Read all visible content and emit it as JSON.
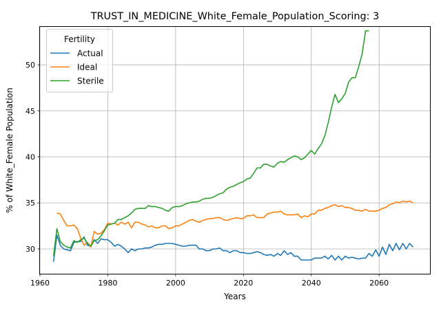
{
  "chart_data": {
    "type": "line",
    "title": "TRUST_IN_MEDICINE_White_Female_Population_Scoring: 3",
    "xlabel": "Years",
    "ylabel": "% of White_Female Population",
    "xlim": [
      1960,
      2075
    ],
    "ylim": [
      27.3,
      54.2
    ],
    "x_ticks": [
      1960,
      1980,
      2000,
      2020,
      2040,
      2060
    ],
    "y_ticks": [
      30,
      35,
      40,
      45,
      50
    ],
    "grid": true,
    "legend": {
      "title": "Fertility",
      "position": "top-left"
    },
    "series": [
      {
        "name": "Actual",
        "color": "#1f77b4",
        "points": [
          [
            1964,
            28.6
          ],
          [
            1965,
            31.5
          ],
          [
            1966,
            30.4
          ],
          [
            1967,
            30.0
          ],
          [
            1968,
            29.9
          ],
          [
            1969,
            29.8
          ],
          [
            1970,
            30.7
          ],
          [
            1971,
            30.8
          ],
          [
            1972,
            30.8
          ],
          [
            1973,
            31.3
          ],
          [
            1974,
            30.4
          ],
          [
            1975,
            30.3
          ],
          [
            1976,
            31.0
          ],
          [
            1977,
            30.6
          ],
          [
            1978,
            31.1
          ],
          [
            1979,
            31.0
          ],
          [
            1980,
            31.0
          ],
          [
            1981,
            30.7
          ],
          [
            1982,
            30.3
          ],
          [
            1983,
            30.5
          ],
          [
            1984,
            30.3
          ],
          [
            1985,
            30.0
          ],
          [
            1986,
            29.6
          ],
          [
            1987,
            30.0
          ],
          [
            1988,
            29.8
          ],
          [
            1989,
            30.0
          ],
          [
            1990,
            30.0
          ],
          [
            1991,
            30.1
          ],
          [
            1992,
            30.1
          ],
          [
            1993,
            30.2
          ],
          [
            1994,
            30.4
          ],
          [
            1995,
            30.5
          ],
          [
            1996,
            30.5
          ],
          [
            1997,
            30.6
          ],
          [
            1998,
            30.6
          ],
          [
            1999,
            30.6
          ],
          [
            2000,
            30.5
          ],
          [
            2001,
            30.4
          ],
          [
            2002,
            30.3
          ],
          [
            2003,
            30.3
          ],
          [
            2004,
            30.4
          ],
          [
            2005,
            30.4
          ],
          [
            2006,
            30.4
          ],
          [
            2007,
            30.0
          ],
          [
            2008,
            30.0
          ],
          [
            2009,
            29.8
          ],
          [
            2010,
            29.8
          ],
          [
            2011,
            30.0
          ],
          [
            2012,
            30.0
          ],
          [
            2013,
            30.1
          ],
          [
            2014,
            29.8
          ],
          [
            2015,
            29.8
          ],
          [
            2016,
            29.6
          ],
          [
            2017,
            29.8
          ],
          [
            2018,
            29.8
          ],
          [
            2019,
            29.6
          ],
          [
            2020,
            29.6
          ],
          [
            2021,
            29.5
          ],
          [
            2022,
            29.5
          ],
          [
            2023,
            29.6
          ],
          [
            2024,
            29.7
          ],
          [
            2025,
            29.6
          ],
          [
            2026,
            29.4
          ],
          [
            2027,
            29.3
          ],
          [
            2028,
            29.4
          ],
          [
            2029,
            29.2
          ],
          [
            2030,
            29.5
          ],
          [
            2031,
            29.3
          ],
          [
            2032,
            29.8
          ],
          [
            2033,
            29.4
          ],
          [
            2034,
            29.6
          ],
          [
            2035,
            29.2
          ],
          [
            2036,
            29.2
          ],
          [
            2037,
            28.8
          ],
          [
            2038,
            28.8
          ],
          [
            2039,
            28.8
          ],
          [
            2040,
            28.8
          ],
          [
            2041,
            29.0
          ],
          [
            2042,
            29.0
          ],
          [
            2043,
            29.0
          ],
          [
            2044,
            29.2
          ],
          [
            2045,
            28.9
          ],
          [
            2046,
            29.3
          ],
          [
            2047,
            28.8
          ],
          [
            2048,
            29.2
          ],
          [
            2049,
            28.8
          ],
          [
            2050,
            29.2
          ],
          [
            2051,
            29.0
          ],
          [
            2052,
            29.1
          ],
          [
            2053,
            29.0
          ],
          [
            2054,
            28.9
          ],
          [
            2055,
            29.0
          ],
          [
            2056,
            29.0
          ],
          [
            2057,
            29.5
          ],
          [
            2058,
            29.2
          ],
          [
            2059,
            29.9
          ],
          [
            2060,
            29.2
          ],
          [
            2061,
            30.2
          ],
          [
            2062,
            29.4
          ],
          [
            2063,
            30.5
          ],
          [
            2064,
            29.8
          ],
          [
            2065,
            30.6
          ],
          [
            2066,
            29.9
          ],
          [
            2067,
            30.6
          ],
          [
            2068,
            30.0
          ],
          [
            2069,
            30.6
          ],
          [
            2070,
            30.2
          ]
        ]
      },
      {
        "name": "Ideal",
        "color": "#ff7f0e",
        "points": [
          [
            1965,
            33.9
          ],
          [
            1966,
            33.8
          ],
          [
            1967,
            33.1
          ],
          [
            1968,
            32.5
          ],
          [
            1969,
            32.5
          ],
          [
            1970,
            32.6
          ],
          [
            1971,
            32.2
          ],
          [
            1972,
            31.2
          ],
          [
            1973,
            30.4
          ],
          [
            1974,
            30.7
          ],
          [
            1975,
            30.2
          ],
          [
            1976,
            31.9
          ],
          [
            1977,
            31.6
          ],
          [
            1978,
            31.7
          ],
          [
            1979,
            32.1
          ],
          [
            1980,
            32.8
          ],
          [
            1981,
            32.7
          ],
          [
            1982,
            32.8
          ],
          [
            1983,
            32.6
          ],
          [
            1984,
            32.9
          ],
          [
            1985,
            32.7
          ],
          [
            1986,
            32.9
          ],
          [
            1987,
            32.3
          ],
          [
            1988,
            32.9
          ],
          [
            1989,
            32.9
          ],
          [
            1990,
            32.7
          ],
          [
            1991,
            32.6
          ],
          [
            1992,
            32.4
          ],
          [
            1993,
            32.5
          ],
          [
            1994,
            32.3
          ],
          [
            1995,
            32.3
          ],
          [
            1996,
            32.5
          ],
          [
            1997,
            32.5
          ],
          [
            1998,
            32.2
          ],
          [
            1999,
            32.3
          ],
          [
            2000,
            32.5
          ],
          [
            2001,
            32.5
          ],
          [
            2002,
            32.7
          ],
          [
            2003,
            32.9
          ],
          [
            2004,
            33.1
          ],
          [
            2005,
            33.2
          ],
          [
            2006,
            33.0
          ],
          [
            2007,
            32.9
          ],
          [
            2008,
            33.1
          ],
          [
            2009,
            33.2
          ],
          [
            2010,
            33.3
          ],
          [
            2011,
            33.3
          ],
          [
            2012,
            33.4
          ],
          [
            2013,
            33.4
          ],
          [
            2014,
            33.2
          ],
          [
            2015,
            33.1
          ],
          [
            2016,
            33.2
          ],
          [
            2017,
            33.3
          ],
          [
            2018,
            33.4
          ],
          [
            2019,
            33.3
          ],
          [
            2020,
            33.3
          ],
          [
            2021,
            33.6
          ],
          [
            2022,
            33.6
          ],
          [
            2023,
            33.7
          ],
          [
            2024,
            33.4
          ],
          [
            2025,
            33.4
          ],
          [
            2026,
            33.4
          ],
          [
            2027,
            33.8
          ],
          [
            2028,
            33.9
          ],
          [
            2029,
            34.0
          ],
          [
            2030,
            34.0
          ],
          [
            2031,
            34.1
          ],
          [
            2032,
            33.8
          ],
          [
            2033,
            33.7
          ],
          [
            2034,
            33.7
          ],
          [
            2035,
            33.7
          ],
          [
            2036,
            33.8
          ],
          [
            2037,
            33.4
          ],
          [
            2038,
            33.6
          ],
          [
            2039,
            33.5
          ],
          [
            2040,
            33.8
          ],
          [
            2041,
            33.8
          ],
          [
            2042,
            34.2
          ],
          [
            2043,
            34.2
          ],
          [
            2044,
            34.4
          ],
          [
            2045,
            34.5
          ],
          [
            2046,
            34.7
          ],
          [
            2047,
            34.8
          ],
          [
            2048,
            34.6
          ],
          [
            2049,
            34.7
          ],
          [
            2050,
            34.5
          ],
          [
            2051,
            34.5
          ],
          [
            2052,
            34.4
          ],
          [
            2053,
            34.2
          ],
          [
            2054,
            34.2
          ],
          [
            2055,
            34.1
          ],
          [
            2056,
            34.3
          ],
          [
            2057,
            34.1
          ],
          [
            2058,
            34.1
          ],
          [
            2059,
            34.1
          ],
          [
            2060,
            34.2
          ],
          [
            2061,
            34.4
          ],
          [
            2062,
            34.5
          ],
          [
            2063,
            34.8
          ],
          [
            2064,
            34.9
          ],
          [
            2065,
            35.1
          ],
          [
            2066,
            35.0
          ],
          [
            2067,
            35.2
          ],
          [
            2068,
            35.1
          ],
          [
            2069,
            35.2
          ],
          [
            2070,
            35.0
          ]
        ]
      },
      {
        "name": "Sterile",
        "color": "#2ca02c",
        "points": [
          [
            1964,
            29.2
          ],
          [
            1965,
            32.2
          ],
          [
            1966,
            30.8
          ],
          [
            1967,
            30.4
          ],
          [
            1968,
            30.2
          ],
          [
            1969,
            30.1
          ],
          [
            1970,
            30.9
          ],
          [
            1971,
            30.7
          ],
          [
            1972,
            31.0
          ],
          [
            1973,
            31.2
          ],
          [
            1974,
            30.6
          ],
          [
            1975,
            30.3
          ],
          [
            1976,
            30.9
          ],
          [
            1977,
            31.0
          ],
          [
            1978,
            31.4
          ],
          [
            1979,
            32.0
          ],
          [
            1980,
            32.6
          ],
          [
            1981,
            32.7
          ],
          [
            1982,
            32.8
          ],
          [
            1983,
            33.2
          ],
          [
            1984,
            33.2
          ],
          [
            1985,
            33.4
          ],
          [
            1986,
            33.6
          ],
          [
            1987,
            33.9
          ],
          [
            1988,
            34.3
          ],
          [
            1989,
            34.4
          ],
          [
            1990,
            34.4
          ],
          [
            1991,
            34.4
          ],
          [
            1992,
            34.7
          ],
          [
            1993,
            34.6
          ],
          [
            1994,
            34.6
          ],
          [
            1995,
            34.5
          ],
          [
            1996,
            34.4
          ],
          [
            1997,
            34.2
          ],
          [
            1998,
            34.1
          ],
          [
            1999,
            34.5
          ],
          [
            2000,
            34.6
          ],
          [
            2001,
            34.6
          ],
          [
            2002,
            34.7
          ],
          [
            2003,
            34.9
          ],
          [
            2004,
            35.0
          ],
          [
            2005,
            35.1
          ],
          [
            2006,
            35.1
          ],
          [
            2007,
            35.2
          ],
          [
            2008,
            35.4
          ],
          [
            2009,
            35.5
          ],
          [
            2010,
            35.5
          ],
          [
            2011,
            35.6
          ],
          [
            2012,
            35.8
          ],
          [
            2013,
            36.0
          ],
          [
            2014,
            36.1
          ],
          [
            2015,
            36.5
          ],
          [
            2016,
            36.7
          ],
          [
            2017,
            36.8
          ],
          [
            2018,
            37.0
          ],
          [
            2019,
            37.2
          ],
          [
            2020,
            37.3
          ],
          [
            2021,
            37.6
          ],
          [
            2022,
            37.7
          ],
          [
            2023,
            38.2
          ],
          [
            2024,
            38.8
          ],
          [
            2025,
            38.8
          ],
          [
            2026,
            39.2
          ],
          [
            2027,
            39.2
          ],
          [
            2028,
            39.0
          ],
          [
            2029,
            38.9
          ],
          [
            2030,
            39.3
          ],
          [
            2031,
            39.5
          ],
          [
            2032,
            39.4
          ],
          [
            2033,
            39.7
          ],
          [
            2034,
            39.9
          ],
          [
            2035,
            40.1
          ],
          [
            2036,
            40.0
          ],
          [
            2037,
            39.7
          ],
          [
            2038,
            39.9
          ],
          [
            2039,
            40.3
          ],
          [
            2040,
            40.7
          ],
          [
            2041,
            40.3
          ],
          [
            2042,
            40.9
          ],
          [
            2043,
            41.4
          ],
          [
            2044,
            42.3
          ],
          [
            2045,
            43.7
          ],
          [
            2046,
            45.4
          ],
          [
            2047,
            46.8
          ],
          [
            2048,
            45.9
          ],
          [
            2049,
            46.3
          ],
          [
            2050,
            46.9
          ],
          [
            2051,
            48.1
          ],
          [
            2052,
            48.6
          ],
          [
            2053,
            48.6
          ],
          [
            2054,
            49.8
          ],
          [
            2055,
            51.2
          ],
          [
            2056,
            53.7
          ],
          [
            2057,
            53.7
          ]
        ]
      }
    ]
  }
}
